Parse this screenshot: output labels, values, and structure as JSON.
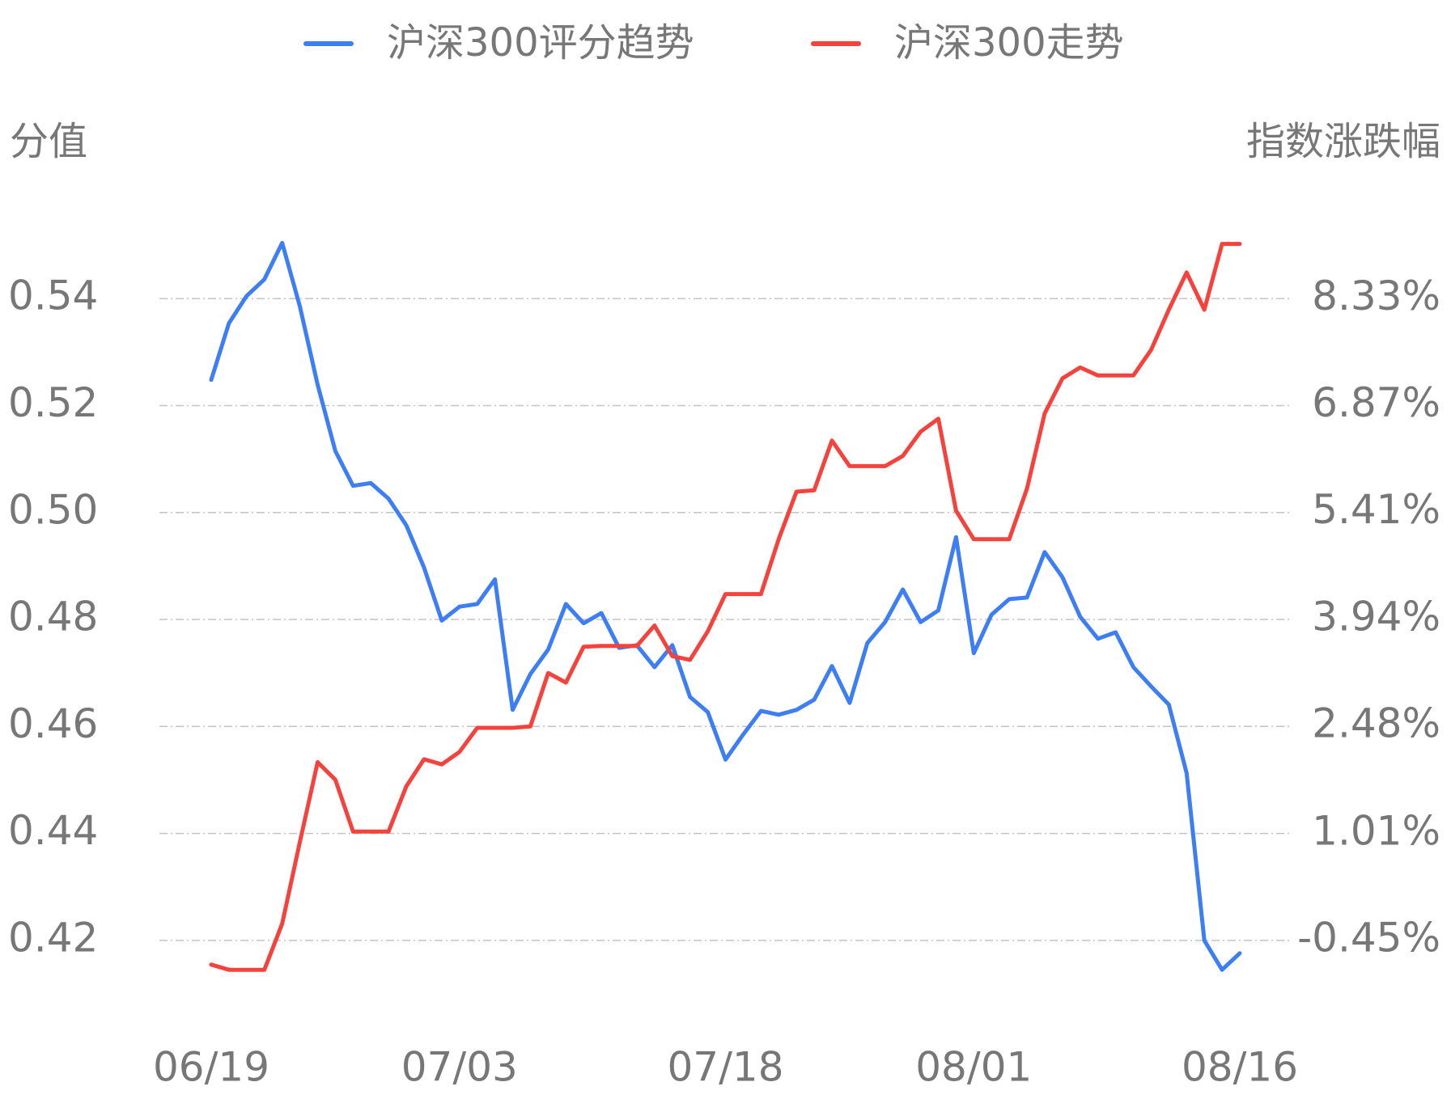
{
  "chart_data": {
    "type": "line",
    "y_label": "分值",
    "y2_label": "指数涨跌幅",
    "categories": [
      "06/19",
      null,
      null,
      null,
      null,
      null,
      null,
      null,
      null,
      null,
      null,
      null,
      null,
      null,
      "07/03",
      null,
      null,
      null,
      null,
      null,
      null,
      null,
      null,
      null,
      null,
      null,
      null,
      null,
      null,
      "07/18",
      null,
      null,
      null,
      null,
      null,
      null,
      null,
      null,
      null,
      null,
      null,
      null,
      null,
      "08/01",
      null,
      null,
      null,
      null,
      null,
      null,
      null,
      null,
      null,
      null,
      null,
      null,
      null,
      null,
      "08/16"
    ],
    "series": [
      {
        "name": "沪深300评分趋势",
        "color": "#3d7ef5",
        "axis": "y",
        "values": [
          0.5248,
          0.5354,
          0.5405,
          0.5436,
          0.5504,
          0.5385,
          0.5239,
          0.5115,
          0.505,
          0.5055,
          0.5026,
          0.4976,
          0.4897,
          0.4798,
          0.4824,
          0.4829,
          0.4875,
          0.4631,
          0.4698,
          0.4744,
          0.4829,
          0.4793,
          0.4812,
          0.4747,
          0.4752,
          0.4711,
          0.4752,
          0.4655,
          0.4627,
          0.4538,
          0.4585,
          0.4629,
          0.4622,
          0.4631,
          0.465,
          0.4713,
          0.4644,
          0.4756,
          0.4795,
          0.4856,
          0.4795,
          0.4817,
          0.4954,
          0.4737,
          0.4809,
          0.4838,
          0.4841,
          0.4926,
          0.4879,
          0.4805,
          0.4764,
          0.4776,
          0.4711,
          0.4675,
          0.4641,
          0.4513,
          0.42,
          0.4145,
          0.4176
        ]
      },
      {
        "name": "沪深300走势",
        "color": "#f5423c",
        "axis": "y2",
        "values": [
          -0.78,
          -0.85,
          -0.85,
          -0.85,
          -0.22,
          0.9,
          1.99,
          1.75,
          1.04,
          1.04,
          1.04,
          1.66,
          2.03,
          1.96,
          2.13,
          2.46,
          2.46,
          2.46,
          2.48,
          3.21,
          3.08,
          3.57,
          3.58,
          3.58,
          3.58,
          3.86,
          3.44,
          3.39,
          3.78,
          4.29,
          4.29,
          4.29,
          5.04,
          5.69,
          5.71,
          6.39,
          6.04,
          6.04,
          6.04,
          6.18,
          6.51,
          6.69,
          5.43,
          5.04,
          5.04,
          5.04,
          5.73,
          6.76,
          7.24,
          7.39,
          7.28,
          7.28,
          7.28,
          7.63,
          8.18,
          8.69,
          8.18,
          9.08,
          9.08
        ]
      }
    ],
    "ylim": [
      0.41,
      0.555
    ],
    "yticks": [
      {
        "value": 0.42,
        "label": "0.42"
      },
      {
        "value": 0.44,
        "label": "0.44"
      },
      {
        "value": 0.46,
        "label": "0.46"
      },
      {
        "value": 0.48,
        "label": "0.48"
      },
      {
        "value": 0.5,
        "label": "0.50"
      },
      {
        "value": 0.52,
        "label": "0.52"
      },
      {
        "value": 0.54,
        "label": "0.54"
      }
    ],
    "y2lim": [
      -1.18,
      9.43
    ],
    "y2ticks": [
      {
        "value": -0.45,
        "label": "-0.45%"
      },
      {
        "value": 1.01,
        "label": "1.01%"
      },
      {
        "value": 2.48,
        "label": "2.48%"
      },
      {
        "value": 3.94,
        "label": "3.94%"
      },
      {
        "value": 5.41,
        "label": "5.41%"
      },
      {
        "value": 6.87,
        "label": "6.87%"
      },
      {
        "value": 8.33,
        "label": "8.33%"
      }
    ],
    "grid": true
  }
}
